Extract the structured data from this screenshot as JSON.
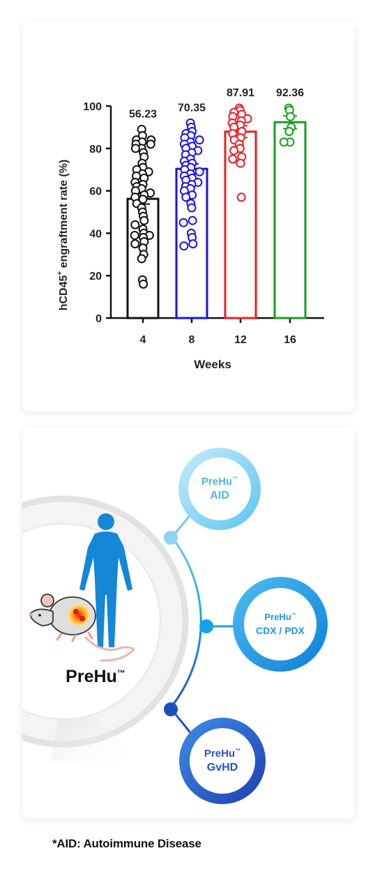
{
  "chart_data": {
    "type": "bar",
    "categories": [
      "4",
      "8",
      "12",
      "16"
    ],
    "values": [
      56.23,
      70.35,
      87.91,
      92.36
    ],
    "value_labels": [
      "56.23",
      "70.35",
      "87.91",
      "92.36"
    ],
    "colors": [
      "#111111",
      "#1a12e6",
      "#ee1c24",
      "#16a01e"
    ],
    "xlabel": "Weeks",
    "ylabel_main": "hCD45",
    "ylabel_sup": "+",
    "ylabel_rest": " engraftment rate (%)",
    "ylim": [
      0,
      100
    ],
    "yticks": [
      0,
      20,
      40,
      60,
      80,
      100
    ],
    "points": [
      [
        89,
        86,
        84,
        84,
        83,
        82,
        82,
        80,
        80,
        78,
        76,
        73,
        71,
        70,
        69,
        68,
        67,
        66,
        64,
        63,
        62,
        61,
        60,
        59,
        58,
        57,
        56,
        54,
        52,
        50,
        48,
        46,
        44,
        42,
        40,
        39,
        39,
        38,
        36,
        35,
        33,
        30,
        28,
        18,
        16
      ],
      [
        92,
        90,
        88,
        87,
        86,
        85,
        84,
        83,
        82,
        81,
        80,
        79,
        78,
        77,
        75,
        74,
        73,
        72,
        71,
        70,
        69,
        68,
        67,
        66,
        65,
        64,
        63,
        62,
        61,
        60,
        58,
        57,
        54,
        52,
        46,
        45,
        40,
        38,
        35,
        34
      ],
      [
        99,
        98,
        97,
        96,
        95,
        94,
        93,
        92,
        91,
        90,
        88,
        87,
        85,
        84,
        82,
        80,
        79,
        76,
        75,
        73,
        57
      ],
      [
        99,
        98,
        95,
        90,
        88,
        83,
        83
      ]
    ],
    "error": [
      2.5,
      2.4,
      2.8,
      3.0
    ]
  },
  "diagram": {
    "brand": "PreHu",
    "tm": "™",
    "nodes": [
      {
        "line1": "PreHu",
        "line2": "AID"
      },
      {
        "line1": "PreHu",
        "line2": "CDX / PDX"
      },
      {
        "line1": "PreHu",
        "line2": "GvHD"
      }
    ],
    "icons": [
      "mouse-icon",
      "human-silhouette-icon"
    ]
  },
  "footnote": "*AID: Autoimmune Disease"
}
